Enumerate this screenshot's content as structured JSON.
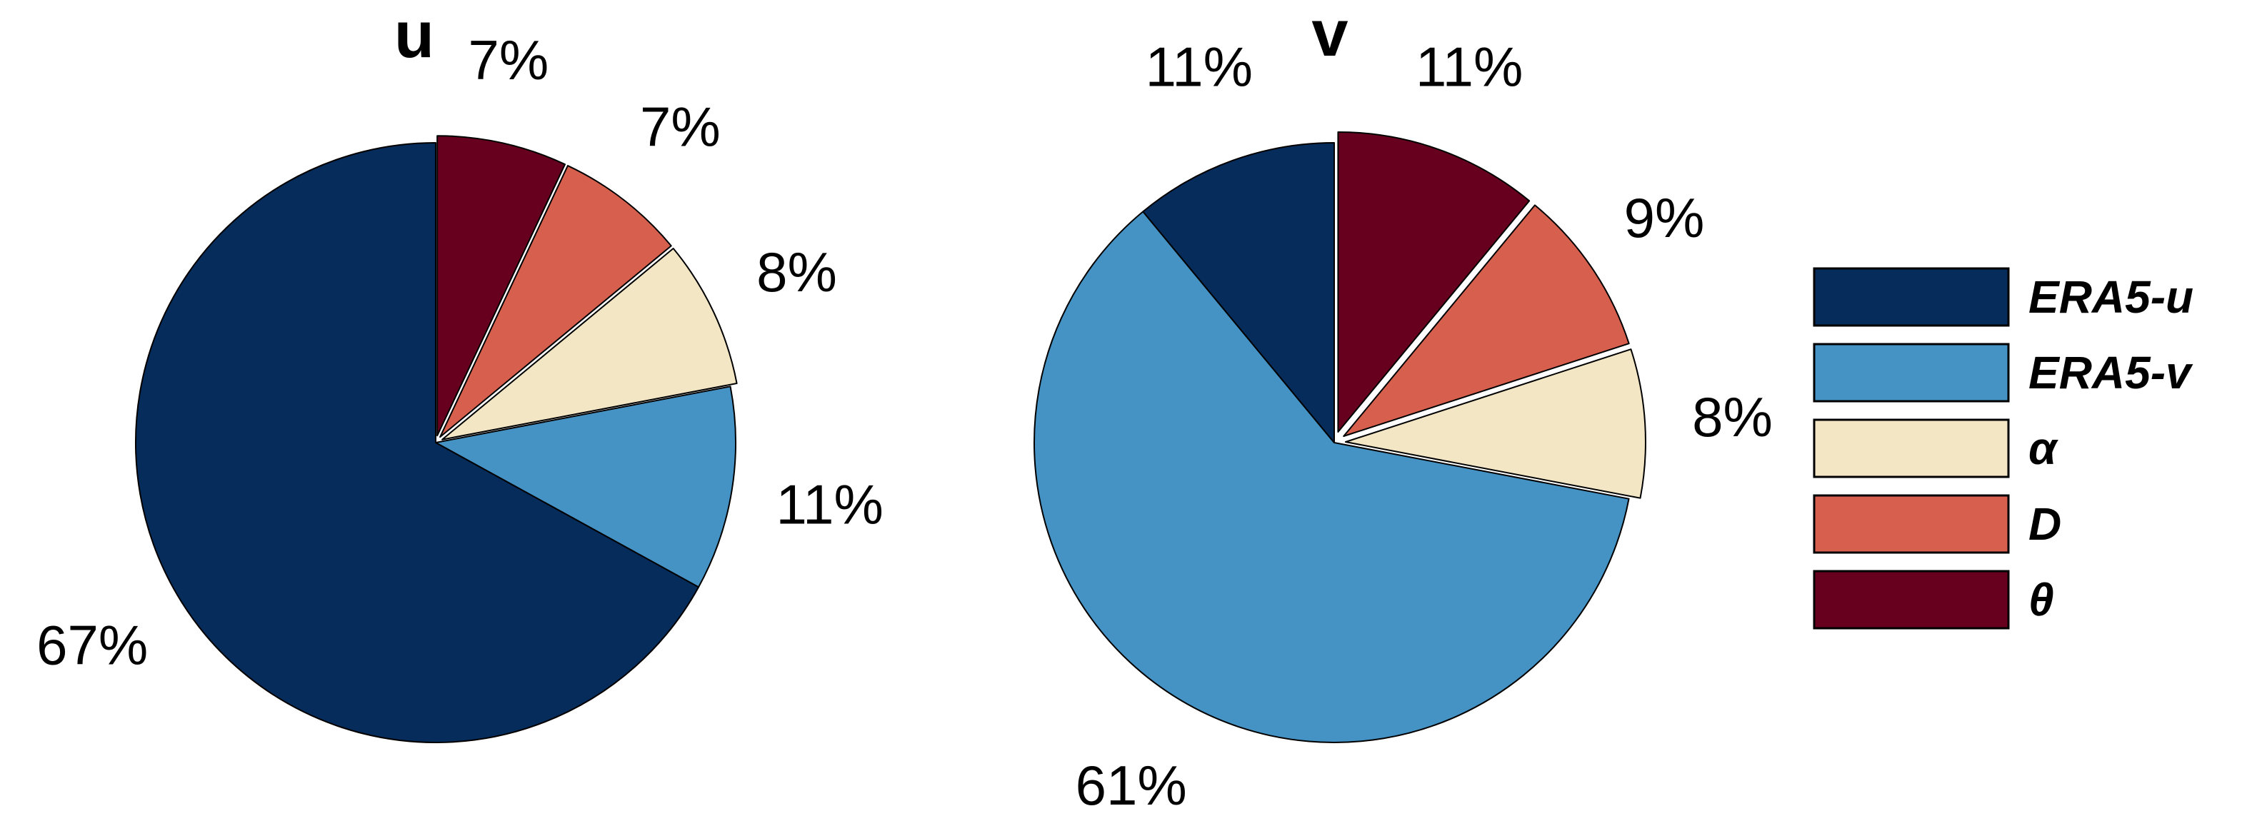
{
  "legend": [
    {
      "key": "era5_u",
      "label": "ERA5-u",
      "color": "#062c5c"
    },
    {
      "key": "era5_v",
      "label": "ERA5-v",
      "color": "#4592c4"
    },
    {
      "key": "alpha",
      "label": "α",
      "color": "#f3e6c4"
    },
    {
      "key": "D",
      "label": "D",
      "color": "#d6604d"
    },
    {
      "key": "theta",
      "label": "θ",
      "color": "#67001f"
    }
  ],
  "chart_data": [
    {
      "type": "pie",
      "title": "u",
      "slices": [
        {
          "key": "theta",
          "value": 7,
          "label": "7%",
          "exploded": true
        },
        {
          "key": "D",
          "value": 7,
          "label": "7%",
          "exploded": true
        },
        {
          "key": "alpha",
          "value": 8,
          "label": "8%",
          "exploded": true
        },
        {
          "key": "era5_v",
          "value": 11,
          "label": "11%",
          "exploded": false
        },
        {
          "key": "era5_u",
          "value": 67,
          "label": "67%",
          "exploded": false
        }
      ]
    },
    {
      "type": "pie",
      "title": "v",
      "slices": [
        {
          "key": "theta",
          "value": 11,
          "label": "11%",
          "exploded": true
        },
        {
          "key": "D",
          "value": 9,
          "label": "9%",
          "exploded": true
        },
        {
          "key": "alpha",
          "value": 8,
          "label": "8%",
          "exploded": true
        },
        {
          "key": "era5_v",
          "value": 61,
          "label": "61%",
          "exploded": false
        },
        {
          "key": "era5_u",
          "value": 11,
          "label": "11%",
          "exploded": false
        }
      ]
    }
  ]
}
